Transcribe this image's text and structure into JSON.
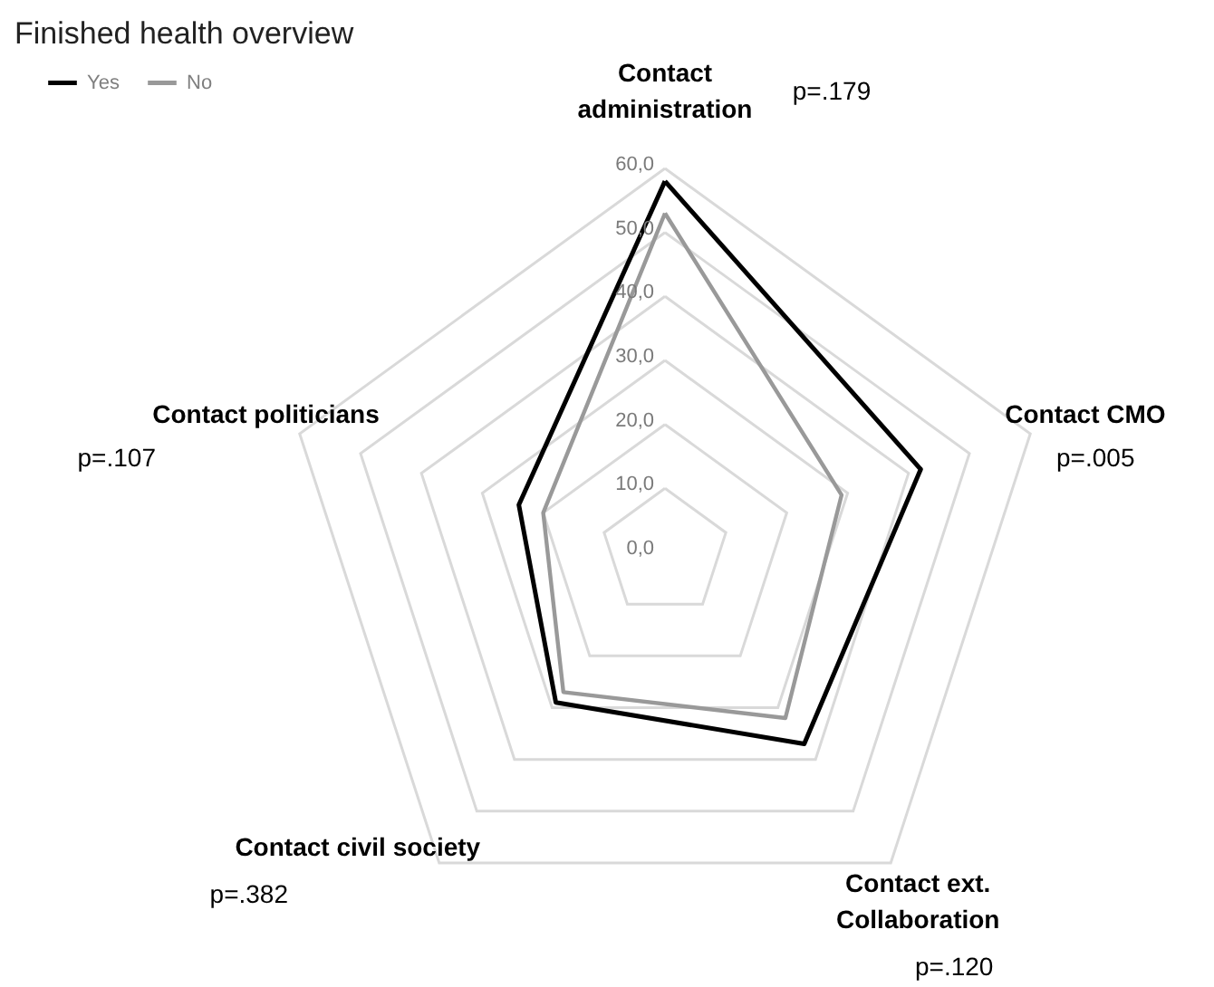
{
  "chart_data": {
    "type": "radar",
    "title": "Finished health overview",
    "categories": [
      "Contact administration",
      "Contact CMO",
      "Contact ext. Collaboration",
      "Contact civil society",
      "Contact politicians"
    ],
    "series": [
      {
        "name": "Yes",
        "color": "#000000",
        "values": [
          58,
          42,
          37,
          29,
          24
        ]
      },
      {
        "name": "No",
        "color": "#999999",
        "values": [
          53,
          29,
          32,
          27,
          20
        ]
      }
    ],
    "ylim": [
      0,
      60
    ],
    "yticks": [
      {
        "value": 0,
        "label": "0,0"
      },
      {
        "value": 10,
        "label": "10,0"
      },
      {
        "value": 20,
        "label": "20,0"
      },
      {
        "value": 30,
        "label": "30,0"
      },
      {
        "value": 40,
        "label": "40,0"
      },
      {
        "value": 50,
        "label": "50,0"
      },
      {
        "value": 60,
        "label": "60,0"
      }
    ],
    "annotations": [
      "p=.179",
      "p=.005",
      "p=.120",
      "p=.382",
      "p=.107"
    ],
    "legend": "top left",
    "grid": true,
    "marker": "none",
    "line_style": "solid"
  }
}
